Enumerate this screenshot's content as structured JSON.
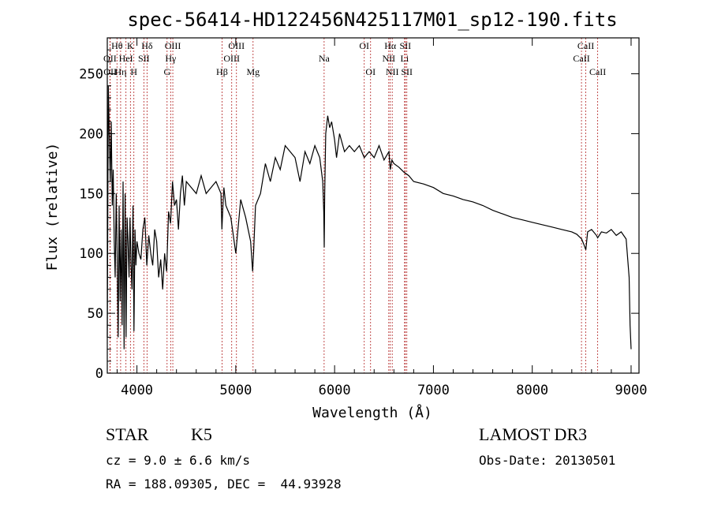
{
  "chart_data": {
    "type": "line",
    "title": "spec-56414-HD122456N425117M01_sp12-190.fits",
    "xlabel": "Wavelength (Å)",
    "ylabel": "Flux (relative)",
    "xlim": [
      3700,
      9080
    ],
    "ylim": [
      0,
      280
    ],
    "xticks": [
      4000,
      5000,
      6000,
      7000,
      8000,
      9000
    ],
    "yticks": [
      0,
      50,
      100,
      150,
      200,
      250
    ],
    "series": [
      {
        "name": "spectrum",
        "x": [
          3700,
          3710,
          3720,
          3730,
          3740,
          3750,
          3760,
          3770,
          3780,
          3790,
          3800,
          3810,
          3820,
          3830,
          3840,
          3850,
          3860,
          3870,
          3880,
          3890,
          3900,
          3910,
          3920,
          3930,
          3940,
          3950,
          3960,
          3970,
          3980,
          3990,
          4000,
          4020,
          4040,
          4060,
          4080,
          4100,
          4120,
          4140,
          4160,
          4180,
          4200,
          4220,
          4240,
          4260,
          4280,
          4300,
          4320,
          4340,
          4360,
          4380,
          4400,
          4420,
          4440,
          4460,
          4480,
          4500,
          4550,
          4600,
          4650,
          4700,
          4750,
          4800,
          4850,
          4860,
          4870,
          4880,
          4900,
          4950,
          5000,
          5050,
          5100,
          5150,
          5170,
          5180,
          5200,
          5250,
          5300,
          5350,
          5400,
          5450,
          5500,
          5550,
          5600,
          5650,
          5700,
          5750,
          5800,
          5850,
          5880,
          5890,
          5895,
          5900,
          5910,
          5930,
          5950,
          5970,
          6000,
          6020,
          6050,
          6100,
          6150,
          6200,
          6250,
          6300,
          6350,
          6400,
          6450,
          6500,
          6550,
          6563,
          6580,
          6600,
          6650,
          6700,
          6750,
          6800,
          6900,
          7000,
          7100,
          7200,
          7300,
          7400,
          7500,
          7600,
          7700,
          7800,
          7900,
          8000,
          8100,
          8200,
          8300,
          8400,
          8450,
          8500,
          8520,
          8542,
          8560,
          8600,
          8650,
          8662,
          8700,
          8750,
          8800,
          8850,
          8900,
          8950,
          8980,
          8990,
          9000
        ],
        "y": [
          30,
          240,
          200,
          160,
          210,
          140,
          170,
          110,
          80,
          150,
          100,
          30,
          140,
          60,
          120,
          40,
          160,
          20,
          150,
          30,
          130,
          110,
          80,
          130,
          90,
          70,
          140,
          35,
          120,
          90,
          110,
          100,
          95,
          120,
          130,
          90,
          115,
          100,
          90,
          120,
          110,
          80,
          95,
          70,
          100,
          85,
          135,
          125,
          160,
          140,
          145,
          120,
          150,
          165,
          140,
          160,
          155,
          150,
          165,
          150,
          155,
          160,
          150,
          120,
          140,
          155,
          140,
          130,
          100,
          145,
          130,
          110,
          85,
          100,
          140,
          150,
          175,
          160,
          180,
          170,
          190,
          185,
          180,
          160,
          185,
          175,
          190,
          180,
          160,
          135,
          105,
          150,
          200,
          215,
          205,
          210,
          195,
          180,
          200,
          185,
          190,
          185,
          190,
          180,
          185,
          180,
          190,
          178,
          185,
          170,
          178,
          175,
          172,
          168,
          165,
          160,
          158,
          155,
          150,
          148,
          145,
          143,
          140,
          136,
          133,
          130,
          128,
          126,
          124,
          122,
          120,
          118,
          116,
          112,
          108,
          103,
          118,
          120,
          115,
          113,
          118,
          117,
          120,
          115,
          118,
          112,
          80,
          40,
          20
        ]
      }
    ],
    "line_labels": [
      {
        "label": "OII",
        "x": 3727,
        "row": 2
      },
      {
        "label": "OII",
        "x": 3729,
        "row": 3
      },
      {
        "label": "Hθ",
        "x": 3798,
        "row": 1
      },
      {
        "label": "Hη",
        "x": 3835,
        "row": 3
      },
      {
        "label": "HeI",
        "x": 3889,
        "row": 2
      },
      {
        "label": "K",
        "x": 3934,
        "row": 1
      },
      {
        "label": "H",
        "x": 3969,
        "row": 3
      },
      {
        "label": "SII",
        "x": 4070,
        "row": 2
      },
      {
        "label": "Hδ",
        "x": 4102,
        "row": 1
      },
      {
        "label": "G",
        "x": 4305,
        "row": 3
      },
      {
        "label": "Hγ",
        "x": 4341,
        "row": 2
      },
      {
        "label": "OIII",
        "x": 4363,
        "row": 1
      },
      {
        "label": "Hβ",
        "x": 4861,
        "row": 3
      },
      {
        "label": "OIII",
        "x": 4959,
        "row": 2
      },
      {
        "label": "OIII",
        "x": 5007,
        "row": 1
      },
      {
        "label": "Mg",
        "x": 5175,
        "row": 3
      },
      {
        "label": "Na",
        "x": 5894,
        "row": 2
      },
      {
        "label": "OI",
        "x": 6300,
        "row": 1
      },
      {
        "label": "OI",
        "x": 6364,
        "row": 3
      },
      {
        "label": "NII",
        "x": 6548,
        "row": 2
      },
      {
        "label": "Hα",
        "x": 6563,
        "row": 1
      },
      {
        "label": "NII",
        "x": 6583,
        "row": 3
      },
      {
        "label": "Li",
        "x": 6708,
        "row": 2
      },
      {
        "label": "SII",
        "x": 6716,
        "row": 1
      },
      {
        "label": "SII",
        "x": 6731,
        "row": 3
      },
      {
        "label": "CaII",
        "x": 8498,
        "row": 2
      },
      {
        "label": "CaII",
        "x": 8542,
        "row": 1
      },
      {
        "label": "CaII",
        "x": 8662,
        "row": 3
      }
    ]
  },
  "info": {
    "class": "STAR",
    "subclass": "K5",
    "survey": "LAMOST DR3",
    "cz": "cz = 9.0 ± 6.6 km/s",
    "obs_date": "Obs-Date: 20130501",
    "coords": "RA = 188.09305, DEC =  44.93928"
  },
  "colors": {
    "spectrum": "#000000",
    "line_marker": "#b22222",
    "axis": "#000000"
  }
}
